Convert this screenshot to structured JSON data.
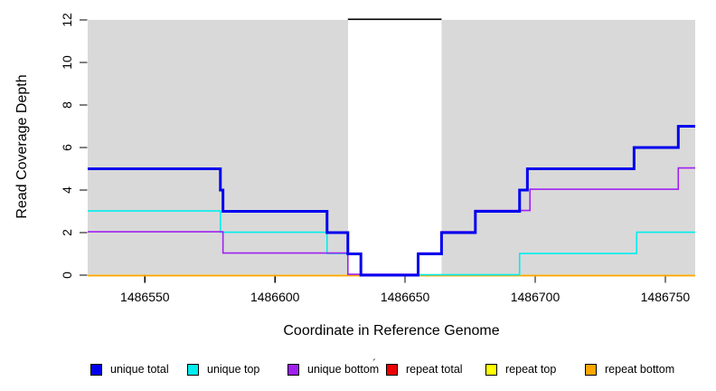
{
  "figure": {
    "background_color": "#ffffff",
    "plot_background_color": "#d9d9d9",
    "repeat_region_background_color": "#ffffff"
  },
  "stray_mark": "´",
  "chart_data": {
    "type": "line",
    "step": true,
    "title": "",
    "xlabel": "Coordinate in Reference Genome",
    "ylabel": "Read Coverage Depth",
    "xlim": [
      1486528,
      1486761.5
    ],
    "ylim": [
      0,
      12
    ],
    "xticks": [
      1486550,
      1486600,
      1486650,
      1486700,
      1486750
    ],
    "xtick_labels": [
      "1486550",
      "1486600",
      "1486650",
      "1486700",
      "1486750"
    ],
    "yticks": [
      0,
      2,
      4,
      6,
      8,
      10,
      12
    ],
    "ytick_labels": [
      "0",
      "2",
      "4",
      "6",
      "8",
      "10",
      "12"
    ],
    "grid": false,
    "legend_position": "bottom",
    "shaded_regions": [
      {
        "name": "unique-mappability-region",
        "x": [
          1486528,
          1486761.5
        ],
        "color": "#d9d9d9"
      },
      {
        "name": "repeat-region",
        "x": [
          1486628,
          1486664
        ],
        "color": "#ffffff"
      }
    ],
    "offscale_segment": {
      "x": [
        1486628,
        1486664
      ],
      "y": 12,
      "color": "#000000"
    },
    "series": [
      {
        "name": "repeat top",
        "color": "#FFFF00",
        "width": 1.6,
        "dy": 0.5,
        "points": [
          [
            1486528,
            0
          ],
          [
            1486761.5,
            0
          ]
        ]
      },
      {
        "name": "repeat bottom",
        "color": "#FFA500",
        "width": 1.8,
        "dy": 0.5,
        "points": [
          [
            1486528,
            0
          ],
          [
            1486761.5,
            0
          ]
        ]
      },
      {
        "name": "repeat total",
        "color": "#EE0000",
        "width": 1.6,
        "dy": 0,
        "points": []
      },
      {
        "name": "unique top",
        "color": "#00EEEE",
        "width": 1.6,
        "dy": -0.4,
        "points": [
          [
            1486528,
            3
          ],
          [
            1486579,
            2
          ],
          [
            1486620,
            1
          ],
          [
            1486633,
            0
          ],
          [
            1486694,
            1
          ],
          [
            1486739,
            2
          ],
          [
            1486761.5,
            2
          ]
        ]
      },
      {
        "name": "unique bottom",
        "color": "#A020F0",
        "width": 1.6,
        "dy": -0.9,
        "points": [
          [
            1486528,
            2
          ],
          [
            1486580,
            1
          ],
          [
            1486628,
            0
          ],
          [
            1486655,
            1
          ],
          [
            1486664,
            2
          ],
          [
            1486677,
            3
          ],
          [
            1486698,
            4
          ],
          [
            1486755,
            5
          ],
          [
            1486761.5,
            5
          ]
        ]
      },
      {
        "name": "unique total",
        "color": "#0000EE",
        "width": 3,
        "dy": 0,
        "points": [
          [
            1486528,
            5
          ],
          [
            1486579,
            4
          ],
          [
            1486580,
            3
          ],
          [
            1486620,
            2
          ],
          [
            1486628,
            1
          ],
          [
            1486633,
            0
          ],
          [
            1486655,
            1
          ],
          [
            1486664,
            2
          ],
          [
            1486677,
            3
          ],
          [
            1486694,
            4
          ],
          [
            1486697,
            5
          ],
          [
            1486738,
            6
          ],
          [
            1486755,
            7
          ],
          [
            1486761.5,
            7
          ]
        ]
      }
    ],
    "legend": [
      {
        "label": "unique total",
        "color": "#0000EE"
      },
      {
        "label": "unique top",
        "color": "#00EEEE"
      },
      {
        "label": "unique bottom",
        "color": "#A020F0"
      },
      {
        "label": "repeat total",
        "color": "#EE0000"
      },
      {
        "label": "repeat top",
        "color": "#FFFF00"
      },
      {
        "label": "repeat bottom",
        "color": "#FFA500"
      }
    ]
  }
}
